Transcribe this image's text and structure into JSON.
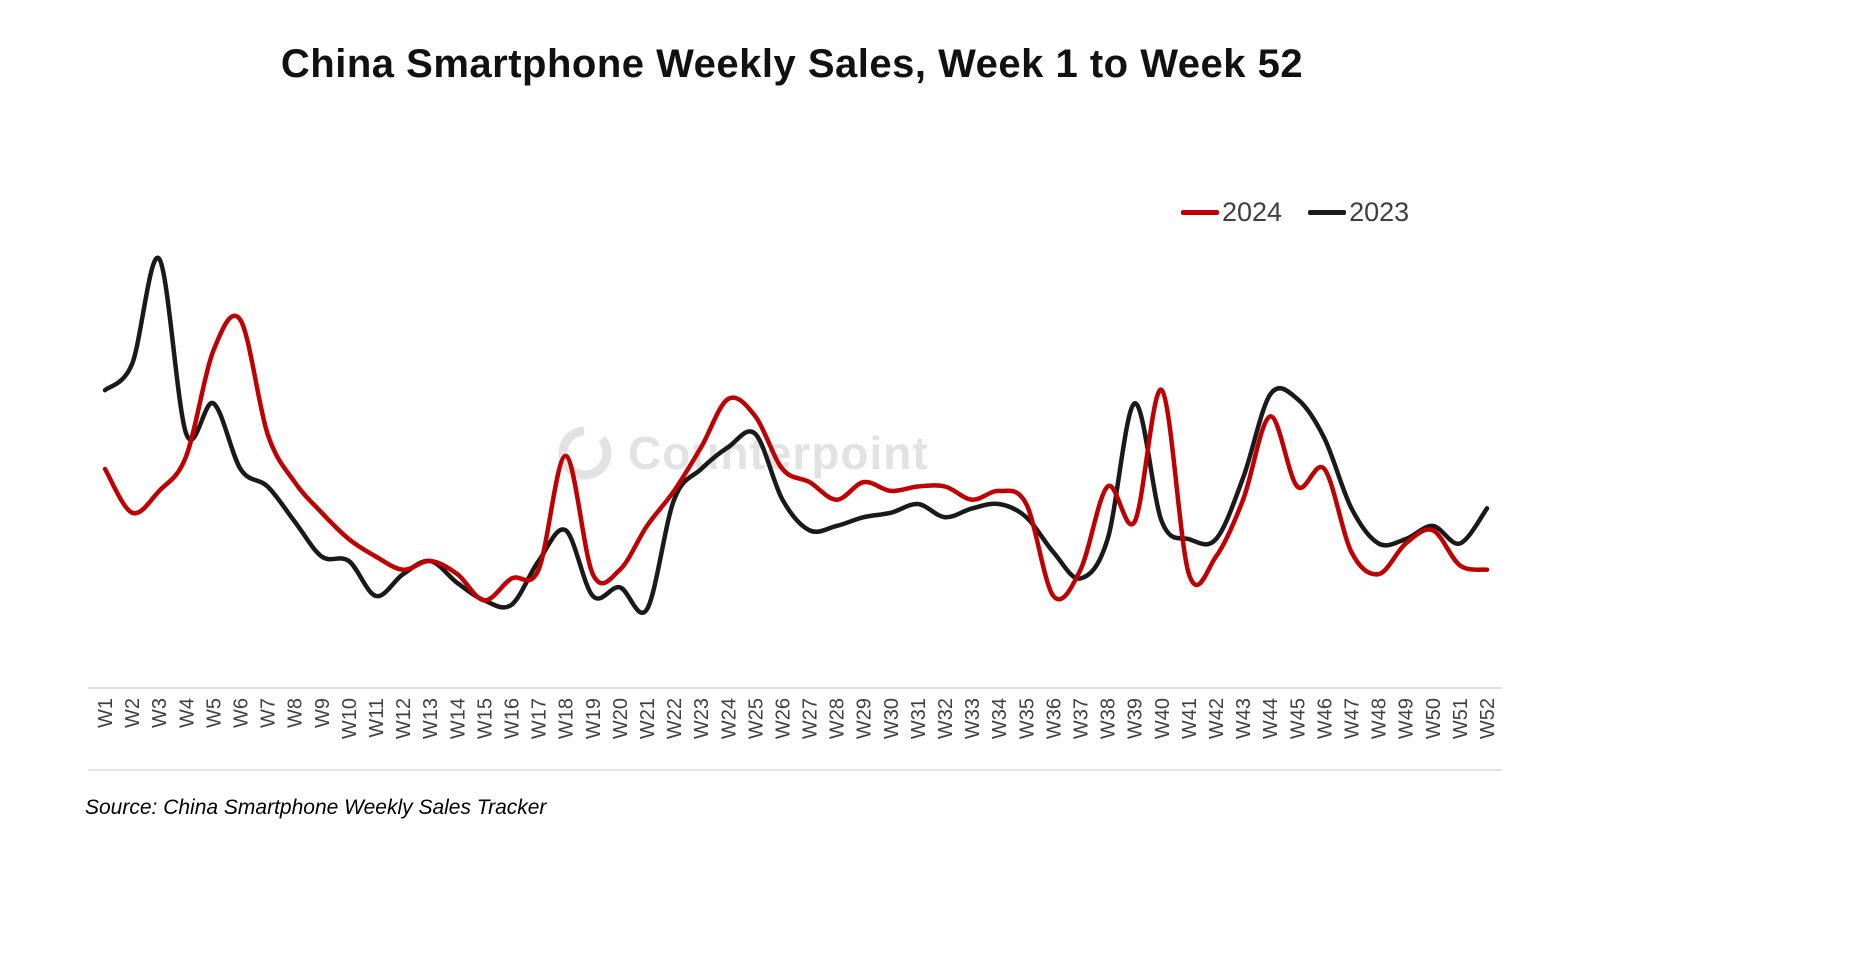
{
  "source_note": "Source: China Smartphone Weekly Sales Tracker",
  "watermark": {
    "text": "Counterpoint"
  },
  "colors": {
    "series_2024": "#c00000",
    "series_2023": "#1a1a1a",
    "axis": "#d9d9d9",
    "tick_label": "#404040",
    "watermark": "#e2e2e2"
  },
  "chart_data": {
    "type": "line",
    "title": "China Smartphone Weekly Sales, Week 1 to Week 52",
    "xlabel": "",
    "ylabel": "",
    "ylim": [
      0,
      100
    ],
    "grid": false,
    "y_axis_visible": false,
    "legend_position": "top-right",
    "categories": [
      "W1",
      "W2",
      "W3",
      "W4",
      "W5",
      "W6",
      "W7",
      "W8",
      "W9",
      "W10",
      "W11",
      "W12",
      "W13",
      "W14",
      "W15",
      "W16",
      "W17",
      "W18",
      "W19",
      "W20",
      "W21",
      "W22",
      "W23",
      "W24",
      "W25",
      "W26",
      "W27",
      "W28",
      "W29",
      "W30",
      "W31",
      "W32",
      "W33",
      "W34",
      "W35",
      "W36",
      "W37",
      "W38",
      "W39",
      "W40",
      "W41",
      "W42",
      "W43",
      "W44",
      "W45",
      "W46",
      "W47",
      "W48",
      "W49",
      "W50",
      "W51",
      "W52"
    ],
    "series": [
      {
        "name": "2024",
        "color": "#c00000",
        "values": [
          50,
          40,
          45,
          53,
          77,
          84,
          58,
          47,
          40,
          34,
          30,
          27,
          29,
          26,
          20,
          25,
          27,
          53,
          26,
          27,
          37,
          45,
          55,
          66,
          62,
          50,
          47,
          43,
          47,
          45,
          46,
          46,
          43,
          45,
          42,
          21,
          27,
          46,
          38,
          68,
          26,
          30,
          43,
          62,
          46,
          50,
          31,
          26,
          33,
          36,
          28,
          27
        ]
      },
      {
        "name": "2023",
        "color": "#1a1a1a",
        "values": [
          68,
          74,
          98,
          58,
          65,
          50,
          46,
          38,
          30,
          29,
          21,
          26,
          29,
          24,
          20,
          19,
          29,
          36,
          21,
          23,
          18,
          43,
          50,
          55,
          58,
          43,
          36,
          37,
          39,
          40,
          42,
          39,
          41,
          42,
          39,
          31,
          25,
          34,
          65,
          38,
          34,
          34,
          48,
          67,
          66,
          57,
          41,
          33,
          34,
          37,
          33,
          41
        ]
      }
    ]
  }
}
